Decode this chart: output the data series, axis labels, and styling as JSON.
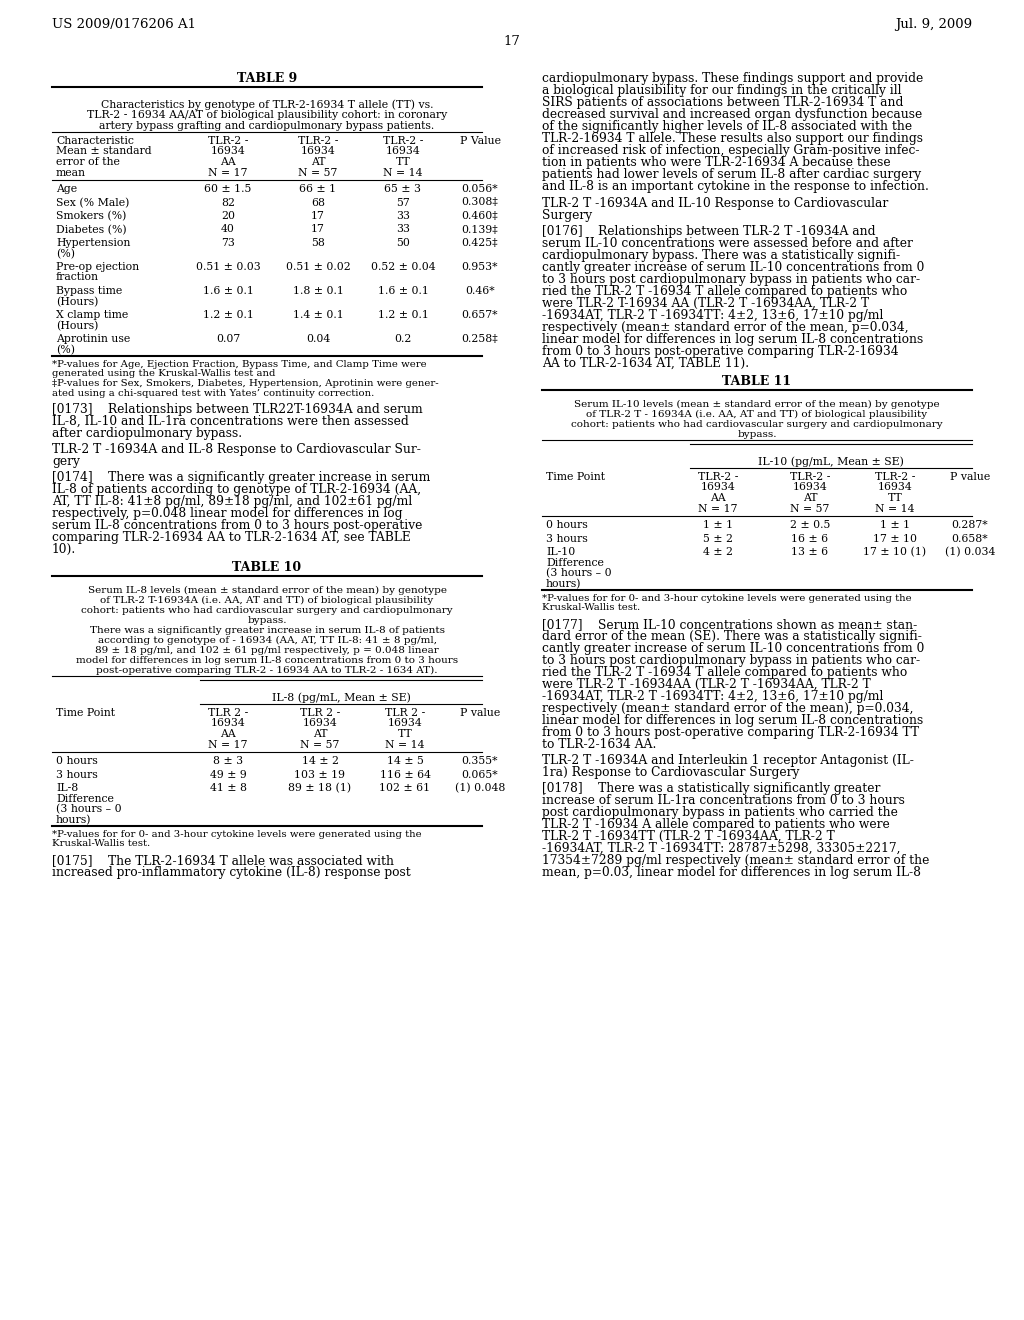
{
  "page_header_left": "US 2009/0176206 A1",
  "page_header_right": "Jul. 9, 2009",
  "page_number": "17",
  "table9": {
    "title": "TABLE 9",
    "caption_lines": [
      "Characteristics by genotype of TLR-2-16934 T allele (TT) vs.",
      "TLR-2 - 16934 AA/AT of biological plausibility cohort: in coronary",
      "artery bypass grafting and cardiopulmonary bypass patients."
    ],
    "col_headers": [
      "Characteristic\nMean ± standard\nerror of the\nmean",
      "TLR-2 -\n16934\nAA\nN = 17",
      "TLR-2 -\n16934\nAT\nN = 57",
      "TLR-2 -\n16934\nTT\nN = 14",
      "P Value"
    ],
    "rows": [
      [
        "Age",
        "60 ± 1.5",
        "66 ± 1",
        "65 ± 3",
        "0.056*"
      ],
      [
        "Sex (% Male)",
        "82",
        "68",
        "57",
        "0.308‡"
      ],
      [
        "Smokers (%)",
        "20",
        "17",
        "33",
        "0.460‡"
      ],
      [
        "Diabetes (%)",
        "40",
        "17",
        "33",
        "0.139‡"
      ],
      [
        "Hypertension\n(%)",
        "73",
        "58",
        "50",
        "0.425‡"
      ],
      [
        "Pre-op ejection\nfraction",
        "0.51 ± 0.03",
        "0.51 ± 0.02",
        "0.52 ± 0.04",
        "0.953*"
      ],
      [
        "Bypass time\n(Hours)",
        "1.6 ± 0.1",
        "1.8 ± 0.1",
        "1.6 ± 0.1",
        "0.46*"
      ],
      [
        "X clamp time\n(Hours)",
        "1.2 ± 0.1",
        "1.4 ± 0.1",
        "1.2 ± 0.1",
        "0.657*"
      ],
      [
        "Aprotinin use\n(%)",
        "0.07",
        "0.04",
        "0.2",
        "0.258‡"
      ]
    ],
    "footnote_lines": [
      "*P-values for Age, Ejection Fraction, Bypass Time, and Clamp Time were",
      "generated using the Kruskal-Wallis test and",
      "‡P-values for Sex, Smokers, Diabetes, Hypertension, Aprotinin were gener-",
      "ated using a chi-squared test with Yates’ continuity correction."
    ]
  },
  "para173_lines": [
    "[0173]    Relationships between TLR22T-16934A and serum",
    "IL-8, IL-10 and IL-1ra concentrations were then assessed",
    "after cardiopulmonary bypass."
  ],
  "subtitle174_lines": [
    "TLR-2 T -16934A and IL-8 Response to Cardiovascular Sur-",
    "gery"
  ],
  "para174_lines": [
    "[0174]    There was a significantly greater increase in serum",
    "IL-8 of patients according to genotype of TLR-2-16934 (AA,",
    "AT, TT IL-8: 41±8 pg/ml, 89±18 pg/ml, and 102±61 pg/ml",
    "respectively, p=0.048 linear model for differences in log",
    "serum IL-8 concentrations from 0 to 3 hours post-operative",
    "comparing TLR-2-16934 AA to TLR-2-1634 AT, see TABLE",
    "10)."
  ],
  "table10": {
    "title": "TABLE 10",
    "caption_lines": [
      "Serum IL-8 levels (mean ± standard error of the mean) by genotype",
      "of TLR-2 T-16934A (i.e. AA, AT and TT) of biological plausibility",
      "cohort: patients who had cardiovascular surgery and cardiopulmonary",
      "bypass.",
      "There was a significantly greater increase in serum IL-8 of patients",
      "according to genotype of - 16934 (AA, AT, TT IL-8: 41 ± 8 pg/ml,",
      "89 ± 18 pg/ml, and 102 ± 61 pg/ml respectively, p = 0.048 linear",
      "model for differences in log serum IL-8 concentrations from 0 to 3 hours",
      "post-operative comparing TLR-2 - 16934 AA to TLR-2 - 1634 AT)."
    ],
    "subheader": "IL-8 (pg/mL, Mean ± SE)",
    "col_headers": [
      "Time Point",
      "TLR 2 -\n16934\nAA\nN = 17",
      "TLR 2 -\n16934\nAT\nN = 57",
      "TLR 2 -\n16934\nTT\nN = 14",
      "P value"
    ],
    "rows": [
      [
        "0 hours",
        "8 ± 3",
        "14 ± 2",
        "14 ± 5",
        "0.355*"
      ],
      [
        "3 hours",
        "49 ± 9",
        "103 ± 19",
        "116 ± 64",
        "0.065*"
      ],
      [
        "IL-8\nDifference\n(3 hours – 0\nhours)",
        "41 ± 8",
        "89 ± 18 (1)",
        "102 ± 61",
        "(1) 0.048"
      ]
    ],
    "footnote_lines": [
      "*P-values for for 0- and 3-hour cytokine levels were generated using the",
      "Kruskal-Wallis test."
    ]
  },
  "para175_lines": [
    "[0175]    The TLR-2-16934 T allele was associated with",
    "increased pro-inflammatory cytokine (IL-8) response post"
  ],
  "right_para175_lines": [
    "cardiopulmonary bypass. These findings support and provide",
    "a biological plausibility for our findings in the critically ill",
    "SIRS patients of associations between TLR-2-16934 T and",
    "decreased survival and increased organ dysfunction because",
    "of the significantly higher levels of IL-8 associated with the",
    "TLR-2-16934 T allele. These results also support our findings",
    "of increased risk of infection, especially Gram-positive infec-",
    "tion in patients who were TLR-2-16934 A because these",
    "patients had lower levels of serum IL-8 after cardiac surgery",
    "and IL-8 is an important cytokine in the response to infection."
  ],
  "subtitle176_lines": [
    "TLR-2 T -16934A and IL-10 Response to Cardiovascular",
    "Surgery"
  ],
  "para176_lines": [
    "[0176]    Relationships between TLR-2 T -16934A and",
    "serum IL-10 concentrations were assessed before and after",
    "cardiopulmonary bypass. There was a statistically signifi-",
    "cantly greater increase of serum IL-10 concentrations from 0",
    "to 3 hours post cardiopulmonary bypass in patients who car-",
    "ried the TLR-2 T -16934 T allele compared to patients who",
    "were TLR-2 T-16934 AA (TLR-2 T -16934AA, TLR-2 T",
    "-16934AT, TLR-2 T -16934TT: 4±2, 13±6, 17±10 pg/ml",
    "respectively (mean± standard error of the mean, p=0.034,",
    "linear model for differences in log serum IL-8 concentrations",
    "from 0 to 3 hours post-operative comparing TLR-2-16934",
    "AA to TLR-2-1634 AT, TABLE 11)."
  ],
  "table11": {
    "title": "TABLE 11",
    "caption_lines": [
      "Serum IL-10 levels (mean ± standard error of the mean) by genotype",
      "of TLR-2 T - 16934A (i.e. AA, AT and TT) of biological plausibility",
      "cohort: patients who had cardiovascular surgery and cardiopulmonary",
      "bypass."
    ],
    "subheader": "IL-10 (pg/mL, Mean ± SE)",
    "col_headers": [
      "Time Point",
      "TLR-2 -\n16934\nAA\nN = 17",
      "TLR-2 -\n16934\nAT\nN = 57",
      "TLR-2 -\n16934\nTT\nN = 14",
      "P value"
    ],
    "rows": [
      [
        "0 hours",
        "1 ± 1",
        "2 ± 0.5",
        "1 ± 1",
        "0.287*"
      ],
      [
        "3 hours",
        "5 ± 2",
        "16 ± 6",
        "17 ± 10",
        "0.658*"
      ],
      [
        "IL-10\nDifference\n(3 hours – 0\nhours)",
        "4 ± 2",
        "13 ± 6",
        "17 ± 10 (1)",
        "(1) 0.034"
      ]
    ],
    "footnote_lines": [
      "*P-values for for 0- and 3-hour cytokine levels were generated using the",
      "Kruskal-Wallis test."
    ]
  },
  "para177_lines": [
    "[0177]    Serum IL-10 concentrations shown as mean± stan-",
    "dard error of the mean (SE). There was a statistically signifi-",
    "cantly greater increase of serum IL-10 concentrations from 0",
    "to 3 hours post cardiopulmonary bypass in patients who car-",
    "ried the TLR-2 T -16934 T allele compared to patients who",
    "were TLR-2 T -16934AA (TLR-2 T -16934AA, TLR-2 T",
    "-16934AT, TLR-2 T -16934TT: 4±2, 13±6, 17±10 pg/ml",
    "respectively (mean± standard error of the mean), p=0.034,",
    "linear model for differences in log serum IL-8 concentrations",
    "from 0 to 3 hours post-operative comparing TLR-2-16934 TT",
    "to TLR-2-1634 AA."
  ],
  "subtitle178_lines": [
    "TLR-2 T -16934A and Interleukin 1 receptor Antagonist (IL-",
    "1ra) Response to Cardiovascular Surgery"
  ],
  "para178_lines": [
    "[0178]    There was a statistically significantly greater",
    "increase of serum IL-1ra concentrations from 0 to 3 hours",
    "post cardiopulmonary bypass in patients who carried the",
    "TLR-2 T -16934 A allele compared to patients who were",
    "TLR-2 T -16934TT (TLR-2 T -16934AA, TLR-2 T",
    "-16934AT, TLR-2 T -16934TT: 28787±5298, 33305±2217,",
    "17354±7289 pg/ml respectively (mean± standard error of the",
    "mean, p=0.03, linear model for differences in log serum IL-8"
  ]
}
